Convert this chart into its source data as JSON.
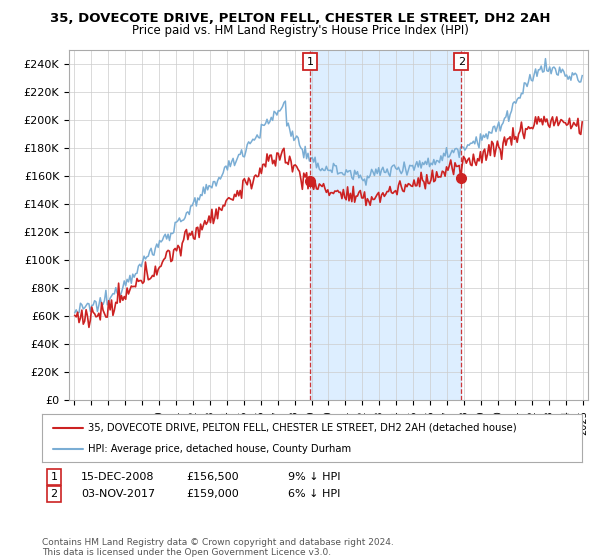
{
  "title": "35, DOVECOTE DRIVE, PELTON FELL, CHESTER LE STREET, DH2 2AH",
  "subtitle": "Price paid vs. HM Land Registry's House Price Index (HPI)",
  "ylabel_ticks": [
    "£0",
    "£20K",
    "£40K",
    "£60K",
    "£80K",
    "£100K",
    "£120K",
    "£140K",
    "£160K",
    "£180K",
    "£200K",
    "£220K",
    "£240K"
  ],
  "ytick_values": [
    0,
    20000,
    40000,
    60000,
    80000,
    100000,
    120000,
    140000,
    160000,
    180000,
    200000,
    220000,
    240000
  ],
  "ylim": [
    0,
    250000
  ],
  "hpi_color": "#7aadd4",
  "price_color": "#cc2222",
  "shade_color": "#ddeeff",
  "marker_color": "#cc2222",
  "legend_line1": "35, DOVECOTE DRIVE, PELTON FELL, CHESTER LE STREET, DH2 2AH (detached house)",
  "legend_line2": "HPI: Average price, detached house, County Durham",
  "footnote": "Contains HM Land Registry data © Crown copyright and database right 2024.\nThis data is licensed under the Open Government Licence v3.0.",
  "background_color": "#ffffff",
  "grid_color": "#cccccc",
  "t1": 2008.917,
  "t2": 2017.833,
  "price1": 156500,
  "price2": 159000
}
